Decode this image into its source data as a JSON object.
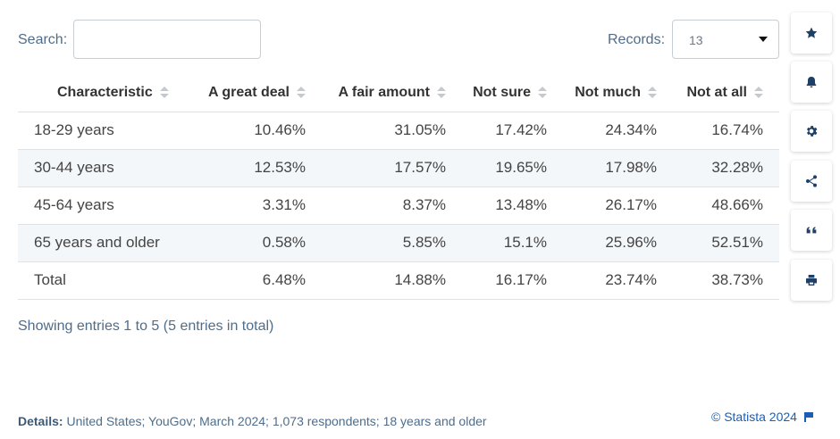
{
  "search": {
    "label": "Search:",
    "value": ""
  },
  "records": {
    "label": "Records:",
    "value": "13"
  },
  "table": {
    "headers": [
      "Characteristic",
      "A great deal",
      "A fair amount",
      "Not sure",
      "Not much",
      "Not at all"
    ],
    "rows": [
      [
        "18-29 years",
        "10.46%",
        "31.05%",
        "17.42%",
        "24.34%",
        "16.74%"
      ],
      [
        "30-44 years",
        "12.53%",
        "17.57%",
        "19.65%",
        "17.98%",
        "32.28%"
      ],
      [
        "45-64 years",
        "3.31%",
        "8.37%",
        "13.48%",
        "26.17%",
        "48.66%"
      ],
      [
        "65 years and older",
        "0.58%",
        "5.85%",
        "15.1%",
        "25.96%",
        "52.51%"
      ],
      [
        "Total",
        "6.48%",
        "14.88%",
        "16.17%",
        "23.74%",
        "38.73%"
      ]
    ]
  },
  "showing": "Showing entries 1 to 5 (5 entries in total)",
  "details": {
    "label": "Details:",
    "text": "United States; YouGov; March 2024; 1,073 respondents; 18 years and older"
  },
  "copyright": "© Statista 2024",
  "toolbar": [
    "star-icon",
    "bell-icon",
    "gear-icon",
    "share-icon",
    "quote-icon",
    "print-icon"
  ],
  "colors": {
    "accent": "#1e3f66",
    "link": "#1a5fb4",
    "row_alt": "#f4f7fa"
  }
}
